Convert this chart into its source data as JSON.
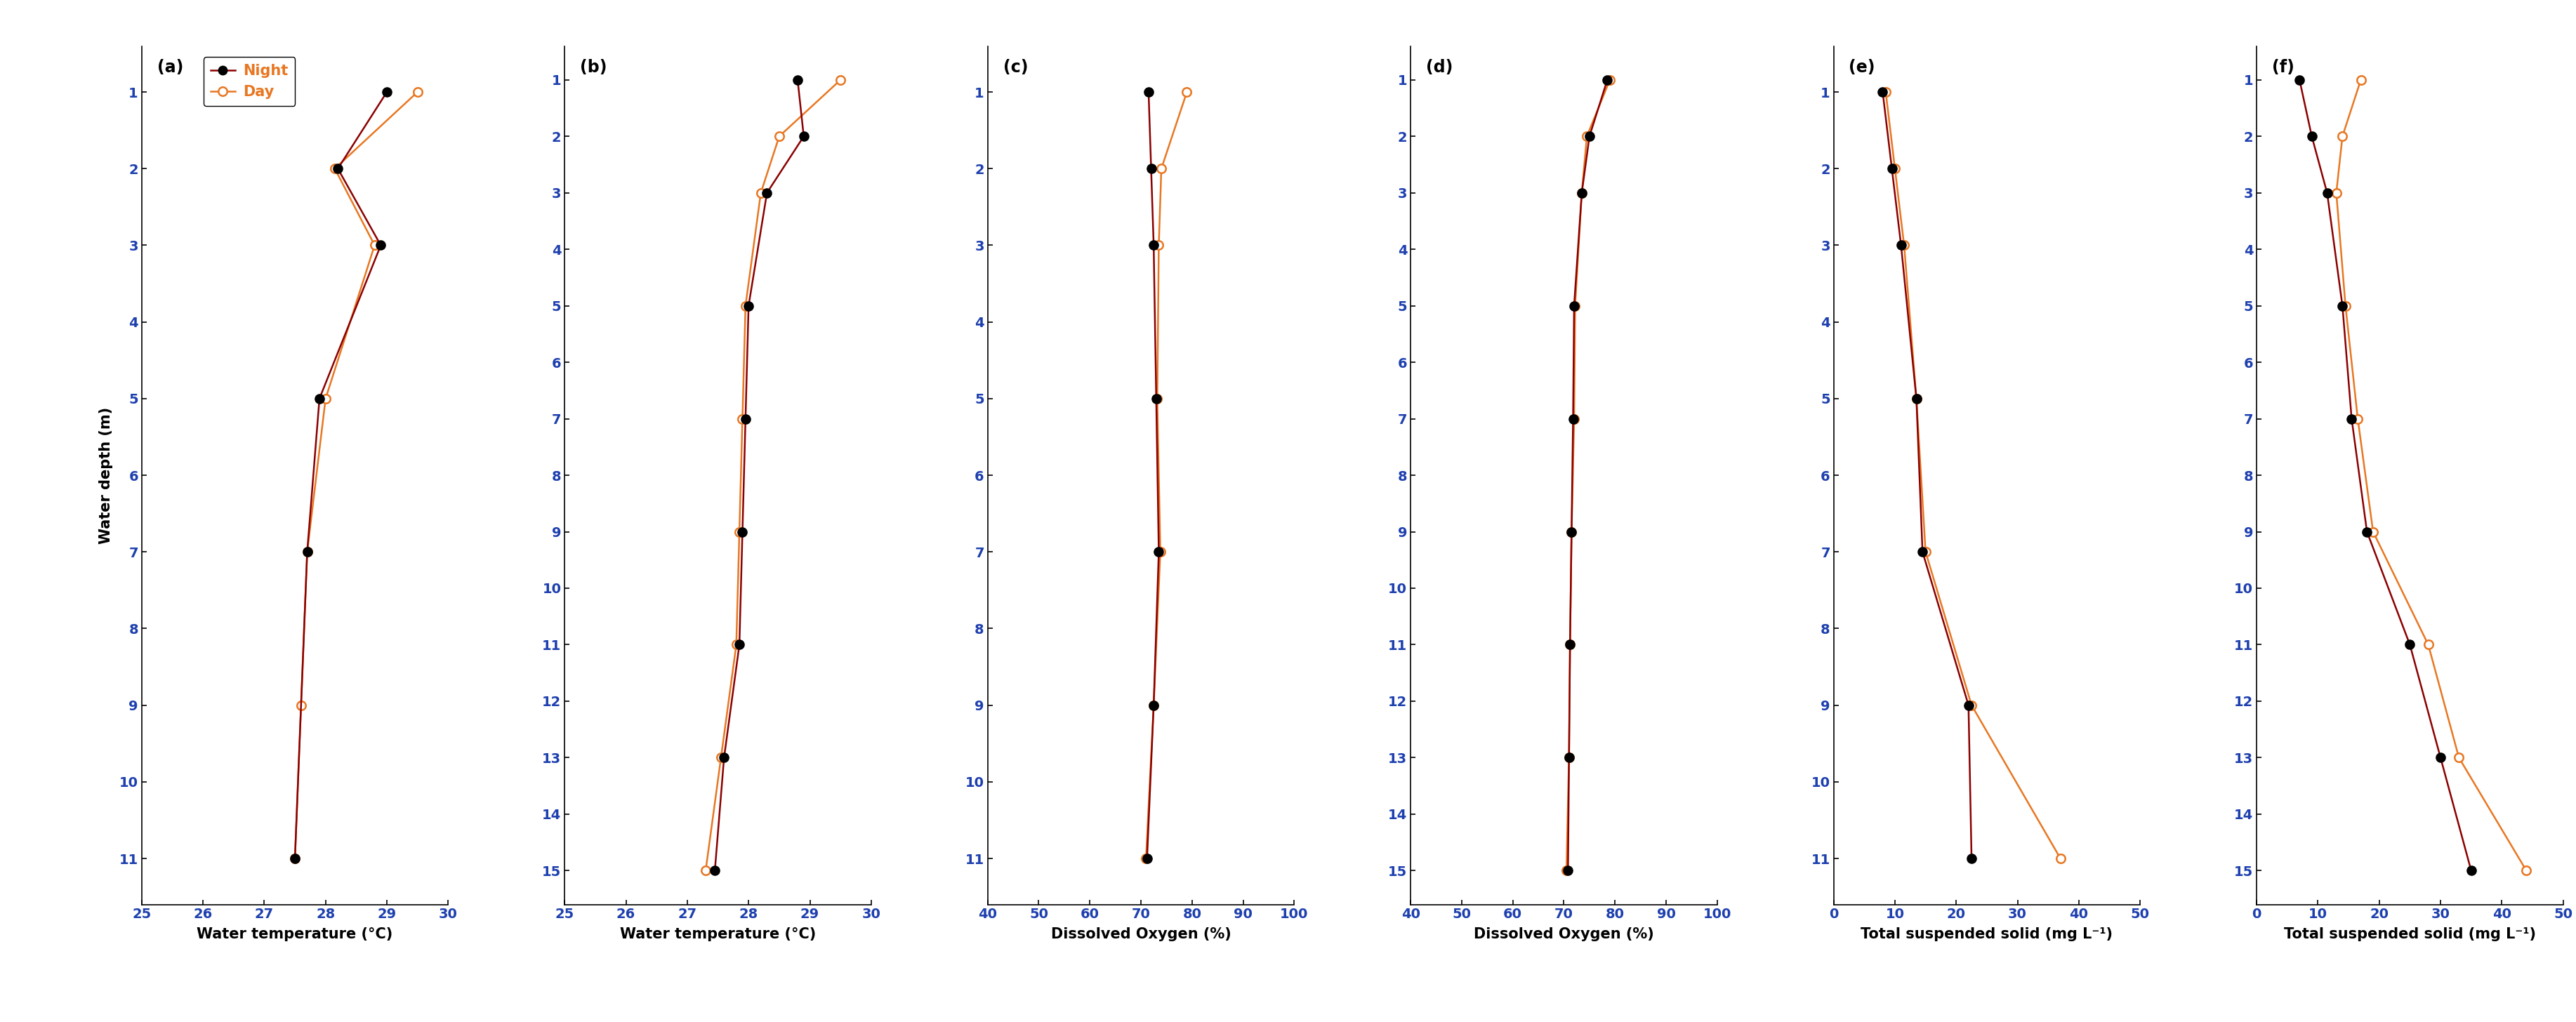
{
  "panels": [
    {
      "label": "(a)",
      "xlim": [
        25,
        30
      ],
      "xticks": [
        25,
        26,
        27,
        28,
        29,
        30
      ],
      "depth_night": [
        1,
        2,
        3,
        5,
        7,
        11
      ],
      "depth_day": [
        1,
        2,
        3,
        5,
        7,
        9,
        11
      ],
      "night": [
        29.0,
        28.2,
        28.9,
        27.9,
        27.7,
        27.5
      ],
      "day": [
        29.5,
        28.15,
        28.8,
        28.0,
        27.7,
        27.6,
        27.5
      ],
      "ylim": [
        11,
        1
      ],
      "yticks": [
        1,
        2,
        3,
        4,
        5,
        6,
        7,
        8,
        9,
        10,
        11
      ],
      "show_ylabel": true,
      "pair_xlabel": "Water temperature (°C)"
    },
    {
      "label": "(b)",
      "xlim": [
        25,
        30
      ],
      "xticks": [
        25,
        26,
        27,
        28,
        29,
        30
      ],
      "depth_night": [
        1,
        2,
        3,
        5,
        7,
        9,
        11,
        13,
        15
      ],
      "depth_day": [
        1,
        2,
        3,
        5,
        7,
        9,
        11,
        13,
        15
      ],
      "night": [
        28.8,
        28.9,
        28.3,
        28.0,
        27.95,
        27.9,
        27.85,
        27.6,
        27.45
      ],
      "day": [
        29.5,
        28.5,
        28.2,
        27.95,
        27.9,
        27.85,
        27.8,
        27.55,
        27.3
      ],
      "ylim": [
        15,
        1
      ],
      "yticks": [
        1,
        2,
        3,
        4,
        5,
        6,
        7,
        8,
        9,
        10,
        11,
        12,
        13,
        14,
        15
      ],
      "show_ylabel": false,
      "pair_xlabel": "Water temperature (°C)"
    },
    {
      "label": "(c)",
      "xlim": [
        40,
        100
      ],
      "xticks": [
        40,
        50,
        60,
        70,
        80,
        90,
        100
      ],
      "depth_night": [
        1,
        2,
        3,
        5,
        7,
        9,
        11
      ],
      "depth_day": [
        1,
        2,
        3,
        5,
        7,
        9,
        11
      ],
      "night": [
        71.5,
        72.0,
        72.5,
        73.0,
        73.5,
        72.5,
        71.2
      ],
      "day": [
        79.0,
        74.0,
        73.5,
        73.2,
        73.8,
        72.5,
        71.0
      ],
      "ylim": [
        11,
        1
      ],
      "yticks": [
        1,
        2,
        3,
        4,
        5,
        6,
        7,
        8,
        9,
        10,
        11
      ],
      "show_ylabel": false,
      "pair_xlabel": "Dissolved Oxygen (%)"
    },
    {
      "label": "(d)",
      "xlim": [
        40,
        100
      ],
      "xticks": [
        40,
        50,
        60,
        70,
        80,
        90,
        100
      ],
      "depth_night": [
        1,
        2,
        3,
        5,
        7,
        9,
        11,
        13,
        15
      ],
      "depth_day": [
        1,
        2,
        3,
        5,
        7,
        9,
        11,
        13,
        15
      ],
      "night": [
        78.5,
        75.0,
        73.5,
        72.0,
        71.8,
        71.5,
        71.2,
        71.0,
        70.8
      ],
      "day": [
        79.0,
        74.5,
        73.5,
        72.2,
        72.0,
        71.5,
        71.2,
        71.0,
        70.5
      ],
      "ylim": [
        15,
        1
      ],
      "yticks": [
        1,
        2,
        3,
        4,
        5,
        6,
        7,
        8,
        9,
        10,
        11,
        12,
        13,
        14,
        15
      ],
      "show_ylabel": false,
      "pair_xlabel": "Dissolved Oxygen (%)"
    },
    {
      "label": "(e)",
      "xlim": [
        0,
        50
      ],
      "xticks": [
        0,
        10,
        20,
        30,
        40,
        50
      ],
      "depth_night": [
        1,
        2,
        3,
        5,
        7,
        9,
        11
      ],
      "depth_day": [
        1,
        2,
        3,
        5,
        7,
        9,
        11
      ],
      "night": [
        8.0,
        9.5,
        11.0,
        13.5,
        14.5,
        22.0,
        22.5
      ],
      "day": [
        8.5,
        10.0,
        11.5,
        13.5,
        15.0,
        22.5,
        37.0
      ],
      "ylim": [
        11,
        1
      ],
      "yticks": [
        1,
        2,
        3,
        4,
        5,
        6,
        7,
        8,
        9,
        10,
        11
      ],
      "show_ylabel": false,
      "pair_xlabel": "Total suspended solid (mg L⁻¹)"
    },
    {
      "label": "(f)",
      "xlim": [
        0,
        50
      ],
      "xticks": [
        0,
        10,
        20,
        30,
        40,
        50
      ],
      "depth_night": [
        1,
        2,
        3,
        5,
        7,
        9,
        11,
        13,
        15
      ],
      "depth_day": [
        1,
        2,
        3,
        5,
        7,
        9,
        11,
        13,
        15
      ],
      "night": [
        7.0,
        9.0,
        11.5,
        14.0,
        15.5,
        18.0,
        25.0,
        30.0,
        35.0
      ],
      "day": [
        17.0,
        14.0,
        13.0,
        14.5,
        16.5,
        19.0,
        28.0,
        33.0,
        44.0
      ],
      "ylim": [
        15,
        1
      ],
      "yticks": [
        1,
        2,
        3,
        4,
        5,
        6,
        7,
        8,
        9,
        10,
        11,
        12,
        13,
        14,
        15
      ],
      "show_ylabel": false,
      "pair_xlabel": "Total suspended solid (mg L⁻¹)"
    }
  ],
  "night_color": "#8B0000",
  "day_color": "#E87722",
  "ylabel": "Water depth (m)",
  "tick_color": "#1E40AF",
  "font_size": 15,
  "tick_fontsize": 14,
  "label_fontsize": 16,
  "xlabel_fontsize": 15
}
